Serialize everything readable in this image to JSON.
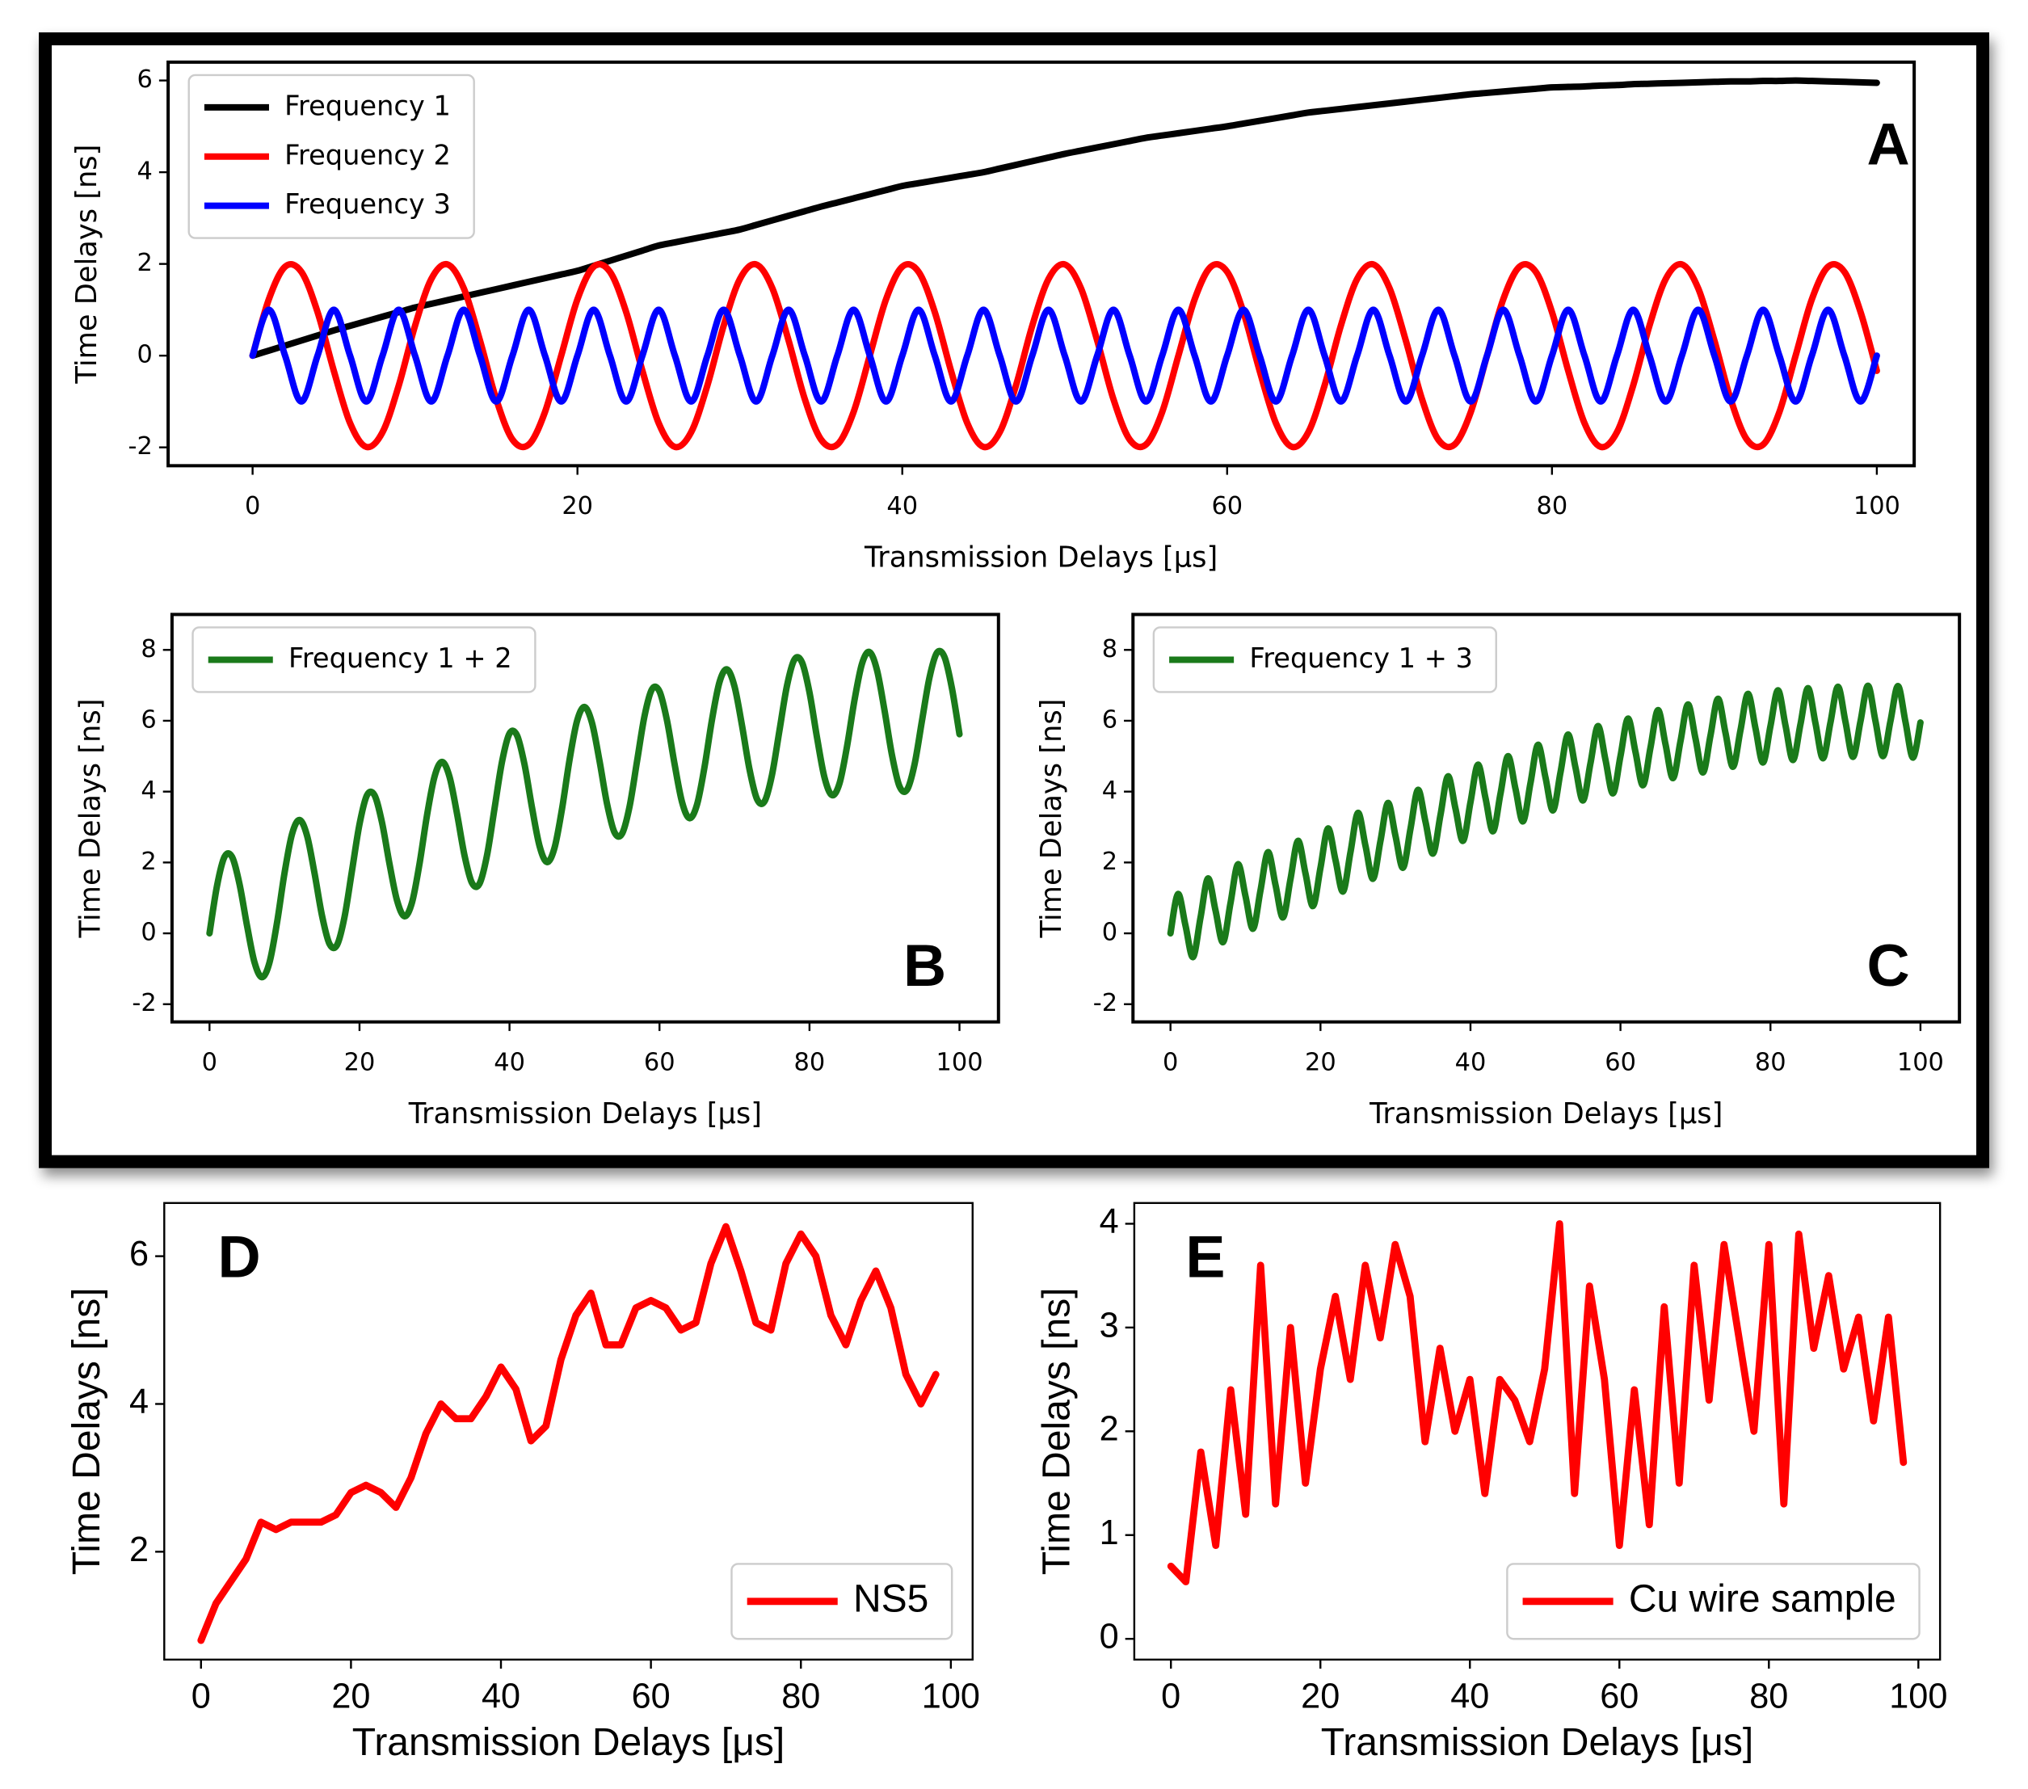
{
  "chart_data": [
    {
      "type": "line",
      "style": "xkcd",
      "panel_label": "A",
      "xlabel": "Transmission Delays [μs]",
      "ylabel": "Time Delays [ns]",
      "legend": "upper left",
      "xlim": [
        -5.2,
        102.3
      ],
      "ylim": [
        -2.4,
        6.4
      ],
      "xticks": [
        0,
        20,
        40,
        60,
        80,
        100
      ],
      "yticks": [
        -2,
        0,
        2,
        4,
        6
      ],
      "x": [
        0,
        1,
        2,
        3,
        4,
        5,
        6,
        7,
        8,
        9,
        10,
        11,
        12,
        13,
        14,
        15,
        16,
        17,
        18,
        19,
        20,
        21,
        22,
        23,
        24,
        25,
        26,
        27,
        28,
        29,
        30,
        31,
        32,
        33,
        34,
        35,
        36,
        37,
        38,
        39,
        40,
        41,
        42,
        43,
        44,
        45,
        46,
        47,
        48,
        49,
        50,
        51,
        52,
        53,
        54,
        55,
        56,
        57,
        58,
        59,
        60,
        61,
        62,
        63,
        64,
        65,
        66,
        67,
        68,
        69,
        70,
        71,
        72,
        73,
        74,
        75,
        76,
        77,
        78,
        79,
        80,
        81,
        82,
        83,
        84,
        85,
        86,
        87,
        88,
        89,
        90,
        91,
        92,
        93,
        94,
        95,
        96,
        97,
        98,
        99,
        100
      ],
      "series": [
        {
          "name": "Frequency 1",
          "color": "#000000",
          "values": [
            0,
            0.11,
            0.22,
            0.33,
            0.44,
            0.55,
            0.65,
            0.75,
            0.85,
            0.95,
            1.05,
            1.13,
            1.21,
            1.29,
            1.37,
            1.45,
            1.53,
            1.61,
            1.69,
            1.77,
            1.85,
            1.96,
            2.07,
            2.18,
            2.29,
            2.4,
            2.47,
            2.54,
            2.61,
            2.68,
            2.75,
            2.85,
            2.95,
            3.05,
            3.15,
            3.25,
            3.34,
            3.43,
            3.52,
            3.61,
            3.7,
            3.76,
            3.82,
            3.88,
            3.94,
            4.0,
            4.08,
            4.16,
            4.24,
            4.32,
            4.4,
            4.47,
            4.54,
            4.61,
            4.68,
            4.75,
            4.8,
            4.85,
            4.9,
            4.95,
            5.0,
            5.06,
            5.12,
            5.18,
            5.24,
            5.3,
            5.34,
            5.38,
            5.42,
            5.46,
            5.5,
            5.54,
            5.58,
            5.62,
            5.66,
            5.7,
            5.73,
            5.76,
            5.79,
            5.82,
            5.85,
            5.86,
            5.87,
            5.89,
            5.9,
            5.92,
            5.93,
            5.94,
            5.95,
            5.96,
            5.97,
            5.98,
            5.98,
            5.99,
            5.99,
            6.0,
            5.99,
            5.98,
            5.97,
            5.96,
            5.95
          ]
        },
        {
          "name": "Frequency 2",
          "color": "#ff0000",
          "values": [
            0,
            1.23,
            1.94,
            1.83,
            0.95,
            -0.33,
            -1.47,
            -1.99,
            -1.67,
            -0.65,
            0.65,
            1.67,
            1.99,
            1.47,
            0.33,
            -0.95,
            -1.83,
            -1.94,
            -1.23,
            0,
            1.23,
            1.94,
            1.83,
            0.95,
            -0.33,
            -1.47,
            -1.99,
            -1.67,
            -0.65,
            0.65,
            1.67,
            1.99,
            1.47,
            0.33,
            -0.95,
            -1.83,
            -1.94,
            -1.23,
            0,
            1.23,
            1.94,
            1.83,
            0.95,
            -0.33,
            -1.47,
            -1.99,
            -1.67,
            -0.65,
            0.65,
            1.67,
            1.99,
            1.47,
            0.33,
            -0.95,
            -1.83,
            -1.94,
            -1.23,
            0,
            1.23,
            1.94,
            1.83,
            0.95,
            -0.33,
            -1.47,
            -1.99,
            -1.67,
            -0.65,
            0.65,
            1.67,
            1.99,
            1.47,
            0.33,
            -0.95,
            -1.83,
            -1.94,
            -1.23,
            0,
            1.23,
            1.94,
            1.83,
            0.95,
            -0.33,
            -1.47,
            -1.99,
            -1.67,
            -0.65,
            0.65,
            1.67,
            1.99,
            1.47,
            0.33,
            -0.95,
            -1.83,
            -1.94,
            -1.23,
            0,
            1.23,
            1.94,
            1.83,
            0.95,
            -0.33
          ]
        },
        {
          "name": "Frequency 3",
          "color": "#0000ff",
          "values": [
            0,
            1,
            0,
            -1,
            0,
            1,
            0,
            -1,
            0,
            1,
            0,
            -1,
            0,
            1,
            0,
            -1,
            0,
            1,
            0,
            -1,
            0,
            1,
            0,
            -1,
            0,
            1,
            0,
            -1,
            0,
            1,
            0,
            -1,
            0,
            1,
            0,
            -1,
            0,
            1,
            0,
            -1,
            0,
            1,
            0,
            -1,
            0,
            1,
            0,
            -1,
            0,
            1,
            0,
            -1,
            0,
            1,
            0,
            -1,
            0,
            1,
            0,
            -1,
            0,
            1,
            0,
            -1,
            0,
            1,
            0,
            -1,
            0,
            1,
            0,
            -1,
            0,
            1,
            0,
            -1,
            0,
            1,
            0,
            -1,
            0,
            1,
            0,
            -1,
            0,
            1,
            0,
            -1,
            0,
            1,
            0,
            -1,
            0,
            1,
            0,
            -1,
            0,
            1,
            0,
            -1,
            0
          ]
        }
      ]
    },
    {
      "type": "line",
      "style": "xkcd",
      "panel_label": "B",
      "xlabel": "Transmission Delays [μs]",
      "ylabel": "Time Delays [ns]",
      "legend": "upper left",
      "xlim": [
        -5,
        105.2
      ],
      "ylim": [
        -2.5,
        9
      ],
      "xticks": [
        0,
        20,
        40,
        60,
        80,
        100
      ],
      "yticks": [
        -2,
        0,
        2,
        4,
        6,
        8
      ],
      "x": [
        0,
        1,
        2,
        3,
        4,
        5,
        6,
        7,
        8,
        9,
        10,
        11,
        12,
        13,
        14,
        15,
        16,
        17,
        18,
        19,
        20,
        21,
        22,
        23,
        24,
        25,
        26,
        27,
        28,
        29,
        30,
        31,
        32,
        33,
        34,
        35,
        36,
        37,
        38,
        39,
        40,
        41,
        42,
        43,
        44,
        45,
        46,
        47,
        48,
        49,
        50,
        51,
        52,
        53,
        54,
        55,
        56,
        57,
        58,
        59,
        60,
        61,
        62,
        63,
        64,
        65,
        66,
        67,
        68,
        69,
        70,
        71,
        72,
        73,
        74,
        75,
        76,
        77,
        78,
        79,
        80,
        81,
        82,
        83,
        84,
        85,
        86,
        87,
        88,
        89,
        90,
        91,
        92,
        93,
        94,
        95,
        96,
        97,
        98,
        99,
        100
      ],
      "series": [
        {
          "name": "Frequency 1 + 2",
          "color": "#1a7a1a",
          "values": [
            0,
            1.34,
            2.16,
            2.16,
            1.39,
            0.22,
            -0.82,
            -1.24,
            -0.82,
            0.3,
            1.7,
            2.8,
            3.2,
            2.76,
            1.7,
            0.5,
            -0.3,
            -0.33,
            0.46,
            1.77,
            3.08,
            3.9,
            3.9,
            3.13,
            1.96,
            0.93,
            0.48,
            0.87,
            1.96,
            3.33,
            4.42,
            4.84,
            4.42,
            3.38,
            2.2,
            1.42,
            1.4,
            2.2,
            3.52,
            4.84,
            5.64,
            5.59,
            4.77,
            3.55,
            2.47,
            2.01,
            2.41,
            3.51,
            4.89,
            5.99,
            6.39,
            5.94,
            4.87,
            3.66,
            2.85,
            2.81,
            3.57,
            4.85,
            6.13,
            6.89,
            6.83,
            6.01,
            4.79,
            3.71,
            3.25,
            3.63,
            4.69,
            6.03,
            7.09,
            7.45,
            6.97,
            5.87,
            4.63,
            3.79,
            3.72,
            4.47,
            5.73,
            6.99,
            7.73,
            7.65,
            6.8,
            5.53,
            4.4,
            3.9,
            4.23,
            5.27,
            6.58,
            7.61,
            7.94,
            7.43,
            6.3,
            5.03,
            4.15,
            4.05,
            4.76,
            6.0,
            7.22,
            7.92,
            7.8,
            6.91,
            5.62
          ]
        }
      ]
    },
    {
      "type": "line",
      "style": "xkcd",
      "panel_label": "C",
      "xlabel": "Transmission Delays [μs]",
      "ylabel": "Time Delays [ns]",
      "legend": "upper left",
      "xlim": [
        -5,
        105.2
      ],
      "ylim": [
        -2.5,
        9
      ],
      "xticks": [
        0,
        20,
        40,
        60,
        80,
        100
      ],
      "yticks": [
        -2,
        0,
        2,
        4,
        6,
        8
      ],
      "x": [
        0,
        1,
        2,
        3,
        4,
        5,
        6,
        7,
        8,
        9,
        10,
        11,
        12,
        13,
        14,
        15,
        16,
        17,
        18,
        19,
        20,
        21,
        22,
        23,
        24,
        25,
        26,
        27,
        28,
        29,
        30,
        31,
        32,
        33,
        34,
        35,
        36,
        37,
        38,
        39,
        40,
        41,
        42,
        43,
        44,
        45,
        46,
        47,
        48,
        49,
        50,
        51,
        52,
        53,
        54,
        55,
        56,
        57,
        58,
        59,
        60,
        61,
        62,
        63,
        64,
        65,
        66,
        67,
        68,
        69,
        70,
        71,
        72,
        73,
        74,
        75,
        76,
        77,
        78,
        79,
        80,
        81,
        82,
        83,
        84,
        85,
        86,
        87,
        88,
        89,
        90,
        91,
        92,
        93,
        94,
        95,
        96,
        97,
        98,
        99,
        100
      ],
      "series": [
        {
          "name": "Frequency 1 + 3",
          "color": "#1a7a1a",
          "values": [
            0,
            1.11,
            0.22,
            -0.67,
            0.44,
            1.55,
            0.65,
            -0.25,
            0.85,
            1.95,
            1.05,
            0.13,
            1.21,
            2.29,
            1.37,
            0.45,
            1.53,
            2.61,
            1.69,
            0.77,
            1.85,
            2.96,
            2.07,
            1.18,
            2.29,
            3.4,
            2.47,
            1.54,
            2.61,
            3.68,
            2.75,
            1.85,
            2.95,
            4.05,
            3.15,
            2.25,
            3.34,
            4.43,
            3.52,
            2.61,
            3.7,
            4.76,
            3.82,
            2.88,
            3.94,
            5.0,
            4.08,
            3.16,
            4.24,
            5.32,
            4.4,
            3.47,
            4.54,
            5.61,
            4.68,
            3.75,
            4.8,
            5.85,
            4.9,
            3.95,
            5.0,
            6.06,
            5.12,
            4.18,
            5.24,
            6.3,
            5.34,
            4.38,
            5.42,
            6.46,
            5.5,
            4.54,
            5.58,
            6.62,
            5.66,
            4.7,
            5.73,
            6.76,
            5.79,
            4.82,
            5.85,
            6.86,
            5.87,
            4.89,
            5.9,
            6.92,
            5.93,
            4.94,
            5.95,
            6.96,
            5.97,
            4.98,
            5.98,
            6.99,
            5.99,
            5.0,
            5.99,
            6.98,
            5.97,
            4.96,
            5.95
          ]
        }
      ]
    },
    {
      "type": "line",
      "style": "default",
      "panel_label": "D",
      "xlabel": "Transmission Delays [μs]",
      "ylabel": "Time Delays [ns]",
      "legend": "lower right",
      "xlim": [
        -4.9,
        102.9
      ],
      "ylim": [
        0.54,
        6.72
      ],
      "xticks": [
        0,
        20,
        40,
        60,
        80,
        100
      ],
      "yticks": [
        2,
        4,
        6
      ],
      "x": [
        0,
        2,
        4,
        6,
        8,
        10,
        12,
        14,
        16,
        18,
        20,
        22,
        24,
        26,
        28,
        30,
        32,
        34,
        36,
        38,
        40,
        42,
        44,
        46,
        48,
        50,
        52,
        54,
        56,
        58,
        60,
        62,
        64,
        66,
        68,
        70,
        72,
        74,
        76,
        78,
        80,
        82,
        84,
        86,
        88,
        90,
        92,
        94,
        96,
        98
      ],
      "series": [
        {
          "name": "NS5",
          "color": "#ff0000",
          "values": [
            0.8,
            1.3,
            1.6,
            1.9,
            2.4,
            2.3,
            2.4,
            2.4,
            2.4,
            2.5,
            2.8,
            2.9,
            2.8,
            2.6,
            3.0,
            3.6,
            4.0,
            3.8,
            3.8,
            4.1,
            4.5,
            4.2,
            3.5,
            3.7,
            4.6,
            5.2,
            5.5,
            4.8,
            4.8,
            5.3,
            5.4,
            5.3,
            5.0,
            5.1,
            5.9,
            6.4,
            5.8,
            5.1,
            5.0,
            5.9,
            6.3,
            6.0,
            5.2,
            4.8,
            5.4,
            5.8,
            5.3,
            4.4,
            4.0,
            4.4
          ]
        }
      ]
    },
    {
      "type": "line",
      "style": "default",
      "panel_label": "E",
      "xlabel": "Transmission Delays [μs]",
      "ylabel": "Time Delays [ns]",
      "legend": "lower right",
      "xlim": [
        -4.9,
        102.9
      ],
      "ylim": [
        -0.2,
        4.2
      ],
      "xticks": [
        0,
        20,
        40,
        60,
        80,
        100
      ],
      "yticks": [
        0,
        1,
        2,
        3,
        4
      ],
      "x": [
        0,
        2,
        4,
        6,
        8,
        10,
        12,
        14,
        16,
        18,
        20,
        22,
        24,
        26,
        28,
        30,
        32,
        34,
        36,
        38,
        40,
        42,
        44,
        46,
        48,
        50,
        52,
        54,
        56,
        58,
        60,
        62,
        64,
        66,
        68,
        70,
        72,
        74,
        76,
        78,
        80,
        82,
        84,
        86,
        88,
        90,
        92,
        94,
        96,
        98
      ],
      "series": [
        {
          "name": "Cu wire sample",
          "color": "#ff0000",
          "values": [
            0.7,
            0.55,
            1.8,
            0.9,
            2.4,
            1.2,
            3.6,
            1.3,
            3.0,
            1.5,
            2.6,
            3.3,
            2.5,
            3.6,
            2.9,
            3.8,
            3.3,
            1.9,
            2.8,
            2.0,
            2.5,
            1.4,
            2.5,
            2.3,
            1.9,
            2.6,
            4.0,
            1.4,
            3.4,
            2.5,
            0.9,
            2.4,
            1.1,
            3.2,
            1.5,
            3.6,
            2.3,
            3.8,
            2.9,
            2.0,
            3.8,
            1.3,
            3.9,
            2.8,
            3.5,
            2.6,
            3.1,
            2.1,
            3.1,
            1.7
          ]
        }
      ]
    }
  ]
}
